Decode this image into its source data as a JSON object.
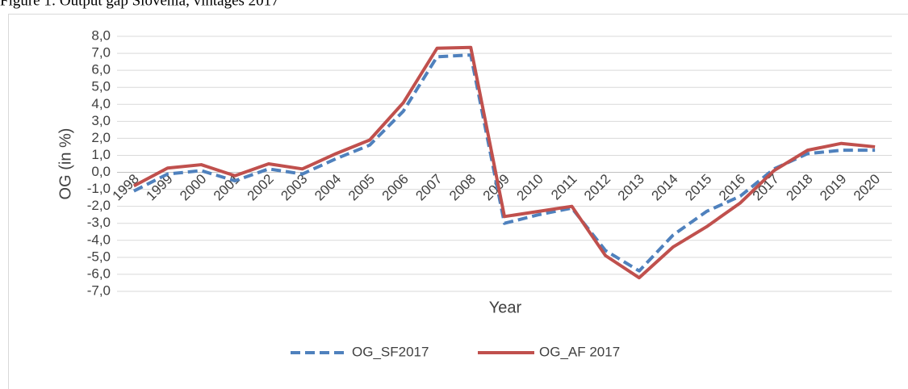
{
  "chart_data": {
    "type": "line",
    "title": "Figure 1: Output gap Slovenia, vintages 2017",
    "y_label": "OG (in %)",
    "x_label": "Year",
    "categories": [
      "1998",
      "1999",
      "2000",
      "2001",
      "2002",
      "2003",
      "2004",
      "2005",
      "2006",
      "2007",
      "2008",
      "2009",
      "2010",
      "2011",
      "2012",
      "2013",
      "2014",
      "2015",
      "2016",
      "2017",
      "2018",
      "2019",
      "2020"
    ],
    "series": [
      {
        "name": "OG_SF2017",
        "color": "#4f81bd",
        "dashed": true,
        "values": [
          -1.1,
          -0.1,
          0.1,
          -0.5,
          0.2,
          -0.1,
          0.8,
          1.6,
          3.6,
          6.8,
          6.9,
          -3.0,
          -2.5,
          -2.1,
          -4.6,
          -5.8,
          -3.7,
          -2.3,
          -1.4,
          0.2,
          1.1,
          1.3,
          1.3
        ]
      },
      {
        "name": "OG_AF 2017",
        "color": "#c0504d",
        "dashed": false,
        "values": [
          -0.8,
          0.25,
          0.45,
          -0.2,
          0.5,
          0.2,
          1.1,
          1.9,
          4.1,
          7.3,
          7.35,
          -2.6,
          -2.3,
          -2.0,
          -4.9,
          -6.2,
          -4.4,
          -3.2,
          -1.8,
          0.1,
          1.3,
          1.7,
          1.5
        ]
      }
    ],
    "ylim": [
      -7,
      8
    ],
    "yticks": [
      {
        "value": 8,
        "label": "8,0"
      },
      {
        "value": 7,
        "label": "7,0"
      },
      {
        "value": 6,
        "label": "6,0"
      },
      {
        "value": 5,
        "label": "5,0"
      },
      {
        "value": 4,
        "label": "4,0"
      },
      {
        "value": 3,
        "label": "3,0"
      },
      {
        "value": 2,
        "label": "2,0"
      },
      {
        "value": 1,
        "label": "1,0"
      },
      {
        "value": 0,
        "label": "0,0"
      },
      {
        "value": -1,
        "label": "-1,0"
      },
      {
        "value": -2,
        "label": "-2,0"
      },
      {
        "value": -3,
        "label": "-3,0"
      },
      {
        "value": -4,
        "label": "-4,0"
      },
      {
        "value": -5,
        "label": "-5,0"
      },
      {
        "value": -6,
        "label": "-6,0"
      },
      {
        "value": -7,
        "label": "-7,0"
      }
    ],
    "grid": true,
    "legend": "bottom"
  }
}
